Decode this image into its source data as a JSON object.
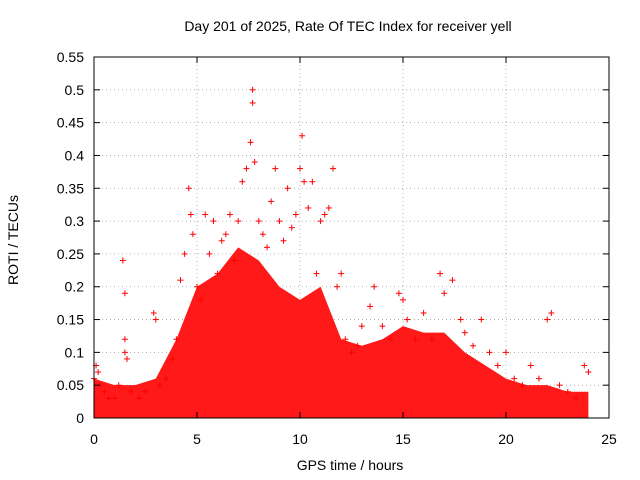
{
  "chart_data": {
    "type": "scatter",
    "title": "Day 201 of 2025, Rate Of TEC Index for receiver yell",
    "xlabel": "GPS time / hours",
    "ylabel": "ROTI / TECUs",
    "xlim": [
      0,
      25
    ],
    "ylim": [
      0,
      0.55
    ],
    "xticks": [
      "0",
      "5",
      "10",
      "15",
      "20",
      "25"
    ],
    "yticks": [
      "0",
      "0.05",
      "0.1",
      "0.15",
      "0.2",
      "0.25",
      "0.3",
      "0.35",
      "0.4",
      "0.45",
      "0.5",
      "0.55"
    ],
    "grid": true,
    "marker": "+",
    "series": [
      {
        "color": "#ff0000",
        "points": [
          [
            0.0,
            0.06
          ],
          [
            0.1,
            0.08
          ],
          [
            0.2,
            0.07
          ],
          [
            0.3,
            0.05
          ],
          [
            0.5,
            0.04
          ],
          [
            0.7,
            0.03
          ],
          [
            1.0,
            0.03
          ],
          [
            1.2,
            0.05
          ],
          [
            1.4,
            0.24
          ],
          [
            1.5,
            0.19
          ],
          [
            1.5,
            0.12
          ],
          [
            1.5,
            0.1
          ],
          [
            1.6,
            0.09
          ],
          [
            1.8,
            0.04
          ],
          [
            2.2,
            0.03
          ],
          [
            2.5,
            0.04
          ],
          [
            2.9,
            0.16
          ],
          [
            3.0,
            0.15
          ],
          [
            3.2,
            0.05
          ],
          [
            3.5,
            0.06
          ],
          [
            3.8,
            0.09
          ],
          [
            4.0,
            0.12
          ],
          [
            4.2,
            0.21
          ],
          [
            4.4,
            0.25
          ],
          [
            4.6,
            0.35
          ],
          [
            4.7,
            0.31
          ],
          [
            4.8,
            0.28
          ],
          [
            5.0,
            0.2
          ],
          [
            5.2,
            0.18
          ],
          [
            5.4,
            0.31
          ],
          [
            5.6,
            0.25
          ],
          [
            5.8,
            0.3
          ],
          [
            6.0,
            0.22
          ],
          [
            6.2,
            0.27
          ],
          [
            6.4,
            0.28
          ],
          [
            6.6,
            0.31
          ],
          [
            6.8,
            0.24
          ],
          [
            7.0,
            0.3
          ],
          [
            7.2,
            0.36
          ],
          [
            7.4,
            0.38
          ],
          [
            7.6,
            0.42
          ],
          [
            7.7,
            0.5
          ],
          [
            7.7,
            0.48
          ],
          [
            7.8,
            0.39
          ],
          [
            8.0,
            0.3
          ],
          [
            8.2,
            0.28
          ],
          [
            8.4,
            0.26
          ],
          [
            8.6,
            0.33
          ],
          [
            8.8,
            0.38
          ],
          [
            9.0,
            0.3
          ],
          [
            9.2,
            0.27
          ],
          [
            9.4,
            0.35
          ],
          [
            9.6,
            0.29
          ],
          [
            9.8,
            0.31
          ],
          [
            10.0,
            0.38
          ],
          [
            10.1,
            0.43
          ],
          [
            10.2,
            0.36
          ],
          [
            10.4,
            0.32
          ],
          [
            10.6,
            0.36
          ],
          [
            10.8,
            0.22
          ],
          [
            11.0,
            0.3
          ],
          [
            11.2,
            0.31
          ],
          [
            11.4,
            0.32
          ],
          [
            11.6,
            0.38
          ],
          [
            11.8,
            0.2
          ],
          [
            12.0,
            0.22
          ],
          [
            12.2,
            0.12
          ],
          [
            12.5,
            0.1
          ],
          [
            12.8,
            0.11
          ],
          [
            13.0,
            0.14
          ],
          [
            13.4,
            0.17
          ],
          [
            13.6,
            0.2
          ],
          [
            14.0,
            0.14
          ],
          [
            14.4,
            0.12
          ],
          [
            14.8,
            0.19
          ],
          [
            15.0,
            0.18
          ],
          [
            15.2,
            0.15
          ],
          [
            15.6,
            0.12
          ],
          [
            16.0,
            0.16
          ],
          [
            16.4,
            0.12
          ],
          [
            16.8,
            0.22
          ],
          [
            17.0,
            0.19
          ],
          [
            17.4,
            0.21
          ],
          [
            17.8,
            0.15
          ],
          [
            18.0,
            0.13
          ],
          [
            18.4,
            0.11
          ],
          [
            18.8,
            0.15
          ],
          [
            19.2,
            0.1
          ],
          [
            19.6,
            0.08
          ],
          [
            20.0,
            0.1
          ],
          [
            20.4,
            0.06
          ],
          [
            20.8,
            0.05
          ],
          [
            21.2,
            0.08
          ],
          [
            21.6,
            0.06
          ],
          [
            22.0,
            0.15
          ],
          [
            22.2,
            0.16
          ],
          [
            22.6,
            0.05
          ],
          [
            23.0,
            0.04
          ],
          [
            23.4,
            0.03
          ],
          [
            23.8,
            0.08
          ],
          [
            24.0,
            0.07
          ]
        ]
      }
    ],
    "band": {
      "x": [
        0,
        1,
        2,
        3,
        4,
        5,
        6,
        7,
        8,
        9,
        10,
        11,
        12,
        13,
        14,
        15,
        16,
        17,
        18,
        19,
        20,
        21,
        22,
        23,
        24
      ],
      "upper": [
        0.06,
        0.05,
        0.05,
        0.06,
        0.12,
        0.2,
        0.22,
        0.26,
        0.24,
        0.2,
        0.18,
        0.2,
        0.12,
        0.11,
        0.12,
        0.14,
        0.13,
        0.13,
        0.1,
        0.08,
        0.06,
        0.05,
        0.05,
        0.04,
        0.04
      ]
    }
  }
}
